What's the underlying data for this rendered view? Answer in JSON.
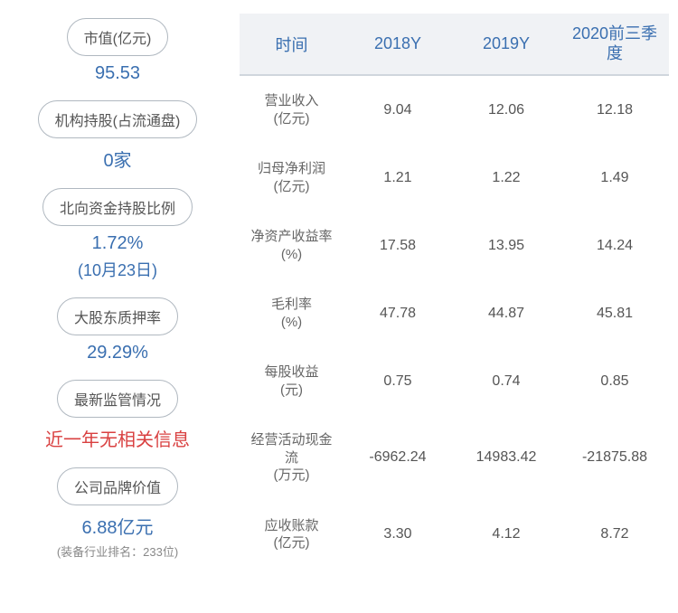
{
  "leftPanel": {
    "items": [
      {
        "label": "市值(亿元)",
        "value": "95.53",
        "valueColor": "blue"
      },
      {
        "label": "机构持股(占流通盘)",
        "value": "0家",
        "valueColor": "blue"
      },
      {
        "label": "北向资金持股比例",
        "value": "1.72%",
        "valueColor": "blue",
        "subvalue": "(10月23日)"
      },
      {
        "label": "大股东质押率",
        "value": "29.29%",
        "valueColor": "blue"
      },
      {
        "label": "最新监管情况",
        "value": "近一年无相关信息",
        "valueColor": "red"
      },
      {
        "label": "公司品牌价值",
        "value": "6.88亿元",
        "valueColor": "blue",
        "subnote": "(装备行业排名：233位)"
      }
    ]
  },
  "table": {
    "headers": [
      "时间",
      "2018Y",
      "2019Y",
      "2020前三季度"
    ],
    "rows": [
      {
        "label": "营业收入",
        "unit": "(亿元)",
        "v1": "9.04",
        "v2": "12.06",
        "v3": "12.18"
      },
      {
        "label": "归母净利润",
        "unit": "(亿元)",
        "v1": "1.21",
        "v2": "1.22",
        "v3": "1.49"
      },
      {
        "label": "净资产收益率",
        "unit": "(%)",
        "v1": "17.58",
        "v2": "13.95",
        "v3": "14.24"
      },
      {
        "label": "毛利率",
        "unit": "(%)",
        "v1": "47.78",
        "v2": "44.87",
        "v3": "45.81"
      },
      {
        "label": "每股收益",
        "unit": "(元)",
        "v1": "0.75",
        "v2": "0.74",
        "v3": "0.85"
      },
      {
        "label": "经营活动现金流",
        "unit": "(万元)",
        "v1": "-6962.24",
        "v2": "14983.42",
        "v3": "-21875.88"
      },
      {
        "label": "应收账款",
        "unit": "(亿元)",
        "v1": "3.30",
        "v2": "4.12",
        "v3": "8.72"
      }
    ]
  },
  "colors": {
    "headerBlue": "#3a6fb0",
    "valueRed": "#d94040",
    "pillBorder": "#b0b8c0",
    "headerBg": "#f0f2f5"
  }
}
